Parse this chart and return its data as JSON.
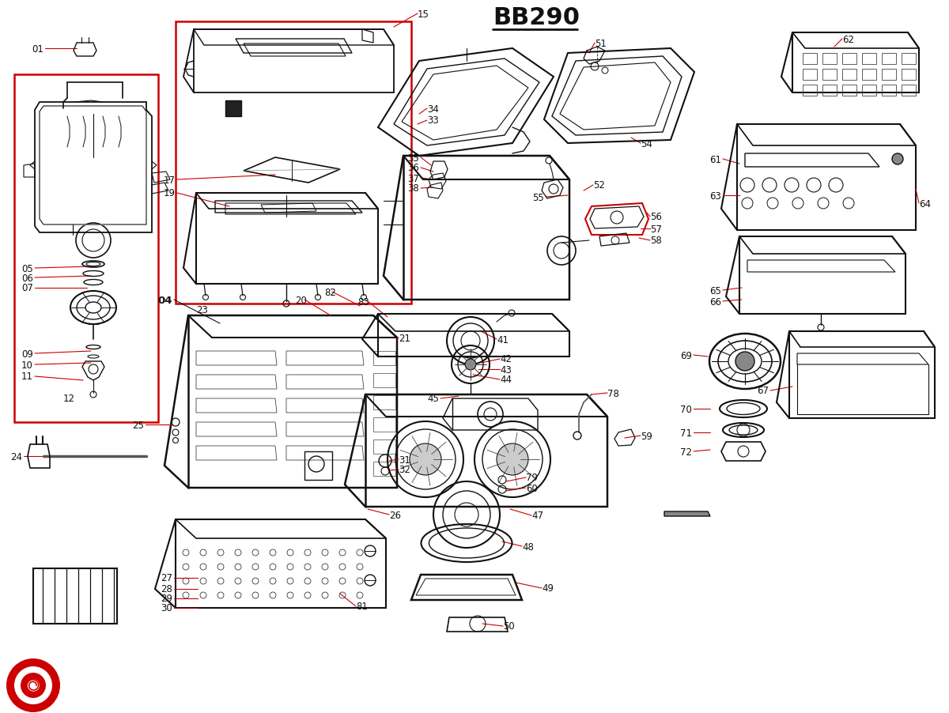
{
  "title": "BB290",
  "bg_color": "#ffffff",
  "lc": "#111111",
  "rc": "#cc0000"
}
